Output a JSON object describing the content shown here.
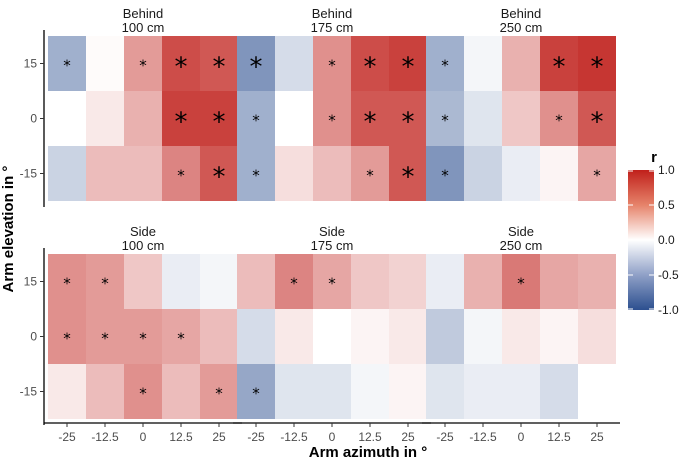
{
  "chart_data": {
    "type": "heatmap",
    "xlabel": "Arm azimuth in °",
    "ylabel": "Arm elevation in °",
    "x_ticks": [
      "-25",
      "-12.5",
      "0",
      "12.5",
      "25"
    ],
    "y_ticks": [
      "15",
      "0",
      "-15"
    ],
    "x_values": [
      -25,
      -12.5,
      0,
      12.5,
      25
    ],
    "y_values": [
      15,
      0,
      -15
    ],
    "legend": {
      "title": "r",
      "range": [
        -1,
        1
      ],
      "ticks": [
        "1.0",
        "0.5",
        "0.0",
        "-0.5",
        "-1.0"
      ],
      "tick_values": [
        1,
        0.5,
        0,
        -0.5,
        -1
      ],
      "colors": {
        "low": "#2c4f8f",
        "mid": "#ffffff",
        "high": "#c0201b"
      }
    },
    "panels": [
      {
        "title_line1": "Behind",
        "title_line2": "100 cm",
        "values": [
          [
            -0.45,
            0.02,
            0.45,
            0.8,
            0.75
          ],
          [
            0.0,
            0.1,
            0.35,
            0.85,
            0.85
          ],
          [
            -0.25,
            0.3,
            0.3,
            0.55,
            0.75
          ]
        ],
        "stars": [
          [
            1,
            0,
            1,
            2,
            2
          ],
          [
            0,
            0,
            0,
            2,
            2
          ],
          [
            0,
            0,
            0,
            1,
            2
          ]
        ]
      },
      {
        "title_line1": "Behind",
        "title_line2": "175 cm",
        "values": [
          [
            -0.6,
            -0.2,
            0.5,
            0.8,
            0.85
          ],
          [
            -0.45,
            0.0,
            0.5,
            0.75,
            0.75
          ],
          [
            -0.45,
            0.15,
            0.3,
            0.45,
            0.75
          ]
        ],
        "stars": [
          [
            2,
            0,
            1,
            2,
            2
          ],
          [
            1,
            0,
            1,
            2,
            2
          ],
          [
            1,
            0,
            0,
            1,
            2
          ]
        ]
      },
      {
        "title_line1": "Behind",
        "title_line2": "250 cm",
        "values": [
          [
            -0.45,
            -0.05,
            0.35,
            0.85,
            0.9
          ],
          [
            -0.4,
            -0.15,
            0.25,
            0.5,
            0.75
          ],
          [
            -0.6,
            -0.25,
            -0.1,
            0.05,
            0.4
          ]
        ],
        "stars": [
          [
            1,
            0,
            0,
            2,
            2
          ],
          [
            1,
            0,
            0,
            1,
            2
          ],
          [
            1,
            0,
            0,
            0,
            1
          ]
        ]
      },
      {
        "title_line1": "Side",
        "title_line2": "100 cm",
        "values": [
          [
            0.5,
            0.45,
            0.25,
            -0.1,
            -0.05
          ],
          [
            0.5,
            0.45,
            0.45,
            0.4,
            0.3
          ],
          [
            0.1,
            0.3,
            0.5,
            0.3,
            0.45
          ]
        ],
        "stars": [
          [
            1,
            1,
            0,
            0,
            0
          ],
          [
            1,
            1,
            1,
            1,
            0
          ],
          [
            0,
            0,
            1,
            0,
            1
          ]
        ]
      },
      {
        "title_line1": "Side",
        "title_line2": "175 cm",
        "values": [
          [
            0.3,
            0.55,
            0.4,
            0.25,
            0.2
          ],
          [
            -0.2,
            0.1,
            0.0,
            0.05,
            0.1
          ],
          [
            -0.5,
            -0.15,
            -0.15,
            -0.05,
            0.05
          ]
        ],
        "stars": [
          [
            0,
            1,
            1,
            0,
            0
          ],
          [
            0,
            0,
            0,
            0,
            0
          ],
          [
            1,
            0,
            0,
            0,
            0
          ]
        ]
      },
      {
        "title_line1": "Side",
        "title_line2": "250 cm",
        "values": [
          [
            -0.1,
            0.35,
            0.6,
            0.4,
            0.35
          ],
          [
            -0.3,
            -0.05,
            0.1,
            0.05,
            0.15
          ],
          [
            -0.15,
            -0.1,
            -0.1,
            -0.2,
            0.0
          ]
        ],
        "stars": [
          [
            0,
            0,
            1,
            0,
            0
          ],
          [
            0,
            0,
            0,
            0,
            0
          ],
          [
            0,
            0,
            0,
            0,
            0
          ]
        ]
      }
    ]
  }
}
